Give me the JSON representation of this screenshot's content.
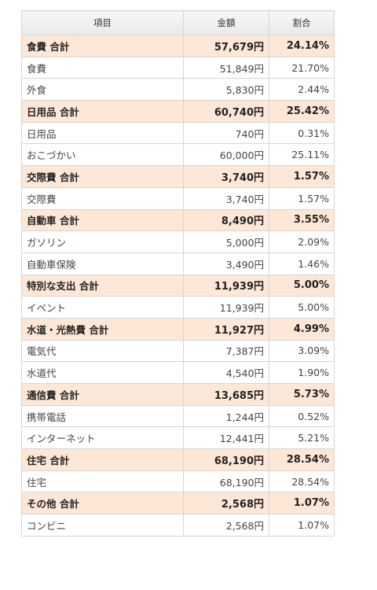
{
  "table": {
    "headers": {
      "item": "項目",
      "amount": "金額",
      "ratio": "割合"
    },
    "rows": [
      {
        "type": "total",
        "item": "食費 合計",
        "amount": "57,679円",
        "ratio": "24.14%"
      },
      {
        "type": "item",
        "item": "食費",
        "amount": "51,849円",
        "ratio": "21.70%"
      },
      {
        "type": "item",
        "item": "外食",
        "amount": "5,830円",
        "ratio": "2.44%"
      },
      {
        "type": "total",
        "item": "日用品 合計",
        "amount": "60,740円",
        "ratio": "25.42%"
      },
      {
        "type": "item",
        "item": "日用品",
        "amount": "740円",
        "ratio": "0.31%"
      },
      {
        "type": "item",
        "item": "おこづかい",
        "amount": "60,000円",
        "ratio": "25.11%"
      },
      {
        "type": "total",
        "item": "交際費 合計",
        "amount": "3,740円",
        "ratio": "1.57%"
      },
      {
        "type": "item",
        "item": "交際費",
        "amount": "3,740円",
        "ratio": "1.57%"
      },
      {
        "type": "total",
        "item": "自動車 合計",
        "amount": "8,490円",
        "ratio": "3.55%"
      },
      {
        "type": "item",
        "item": "ガソリン",
        "amount": "5,000円",
        "ratio": "2.09%"
      },
      {
        "type": "item",
        "item": "自動車保険",
        "amount": "3,490円",
        "ratio": "1.46%"
      },
      {
        "type": "total",
        "item": "特別な支出 合計",
        "amount": "11,939円",
        "ratio": "5.00%"
      },
      {
        "type": "item",
        "item": "イベント",
        "amount": "11,939円",
        "ratio": "5.00%"
      },
      {
        "type": "total",
        "item": "水道・光熱費 合計",
        "amount": "11,927円",
        "ratio": "4.99%"
      },
      {
        "type": "item",
        "item": "電気代",
        "amount": "7,387円",
        "ratio": "3.09%"
      },
      {
        "type": "item",
        "item": "水道代",
        "amount": "4,540円",
        "ratio": "1.90%"
      },
      {
        "type": "total",
        "item": "通信費 合計",
        "amount": "13,685円",
        "ratio": "5.73%"
      },
      {
        "type": "item",
        "item": "携帯電話",
        "amount": "1,244円",
        "ratio": "0.52%"
      },
      {
        "type": "item",
        "item": "インターネット",
        "amount": "12,441円",
        "ratio": "5.21%"
      },
      {
        "type": "total",
        "item": "住宅 合計",
        "amount": "68,190円",
        "ratio": "28.54%"
      },
      {
        "type": "item",
        "item": "住宅",
        "amount": "68,190円",
        "ratio": "28.54%"
      },
      {
        "type": "total",
        "item": "その他 合計",
        "amount": "2,568円",
        "ratio": "1.07%"
      },
      {
        "type": "item",
        "item": "コンビニ",
        "amount": "2,568円",
        "ratio": "1.07%"
      }
    ]
  },
  "colors": {
    "total_row_bg": "#fde7d6",
    "border": "#d6d6d6",
    "header_bg": "#efefef"
  }
}
